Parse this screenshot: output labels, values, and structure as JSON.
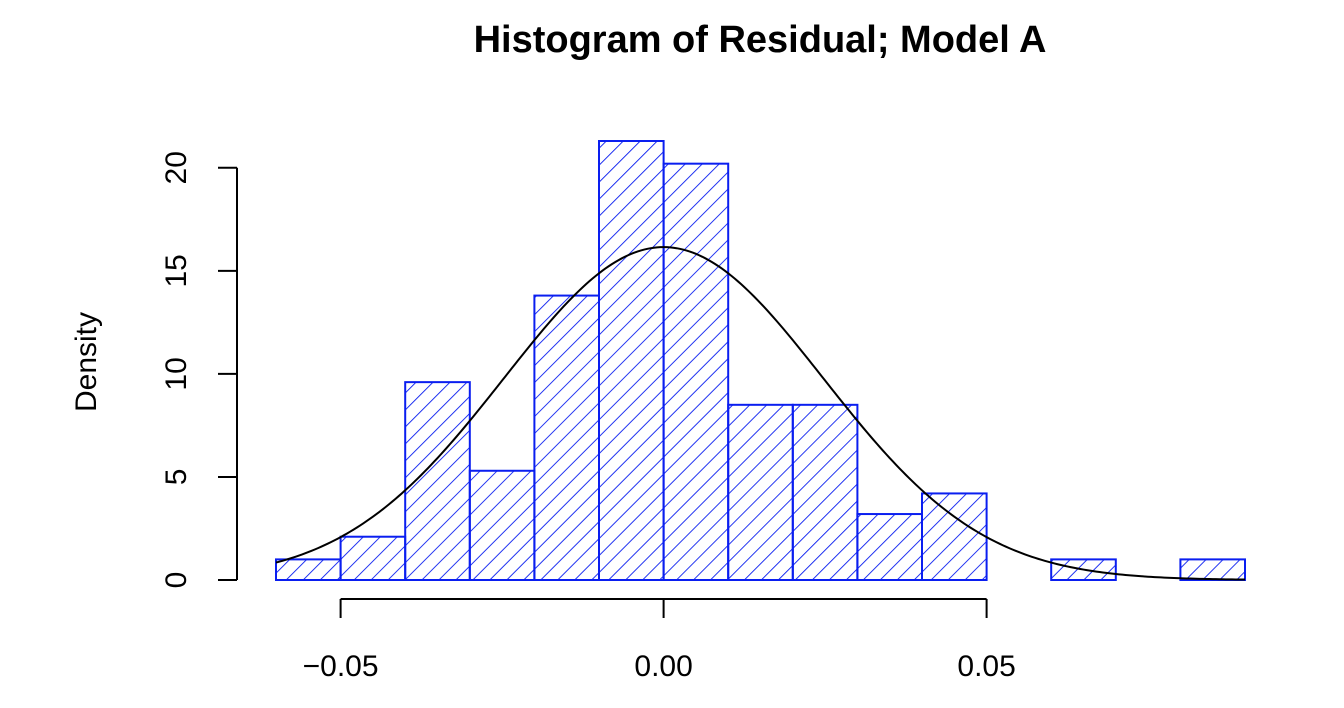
{
  "chart_data": {
    "type": "bar",
    "title": "Histogram of Residual; Model A",
    "xlabel": "",
    "ylabel": "Density",
    "xlim": [
      -0.06,
      0.09
    ],
    "ylim": [
      0,
      21.3
    ],
    "x_ticks": [
      -0.05,
      0.0,
      0.05
    ],
    "x_tick_labels": [
      "−0.05",
      "0.00",
      "0.05"
    ],
    "y_ticks": [
      0,
      5,
      10,
      15,
      20
    ],
    "y_tick_labels": [
      "0",
      "5",
      "10",
      "15",
      "20"
    ],
    "bins": [
      {
        "x0": -0.06,
        "x1": -0.05,
        "density": 1.0
      },
      {
        "x0": -0.05,
        "x1": -0.04,
        "density": 2.1
      },
      {
        "x0": -0.04,
        "x1": -0.03,
        "density": 9.6
      },
      {
        "x0": -0.03,
        "x1": -0.02,
        "density": 5.3
      },
      {
        "x0": -0.02,
        "x1": -0.01,
        "density": 13.8
      },
      {
        "x0": -0.01,
        "x1": 0.0,
        "density": 21.3
      },
      {
        "x0": 0.0,
        "x1": 0.01,
        "density": 20.2
      },
      {
        "x0": 0.01,
        "x1": 0.02,
        "density": 8.5
      },
      {
        "x0": 0.02,
        "x1": 0.03,
        "density": 8.5
      },
      {
        "x0": 0.03,
        "x1": 0.04,
        "density": 3.2
      },
      {
        "x0": 0.04,
        "x1": 0.05,
        "density": 4.2
      },
      {
        "x0": 0.05,
        "x1": 0.06,
        "density": 0.0
      },
      {
        "x0": 0.06,
        "x1": 0.07,
        "density": 1.0
      },
      {
        "x0": 0.07,
        "x1": 0.08,
        "density": 0.0
      },
      {
        "x0": 0.08,
        "x1": 0.09,
        "density": 1.0
      }
    ],
    "overlay_curve": {
      "type": "normal_density",
      "mean": 0.0,
      "sd": 0.0247,
      "color": "#000000"
    },
    "bar_color": "#0a1ef0",
    "fill_pattern": "diagonal hatch",
    "grid": false,
    "legend": "none"
  }
}
